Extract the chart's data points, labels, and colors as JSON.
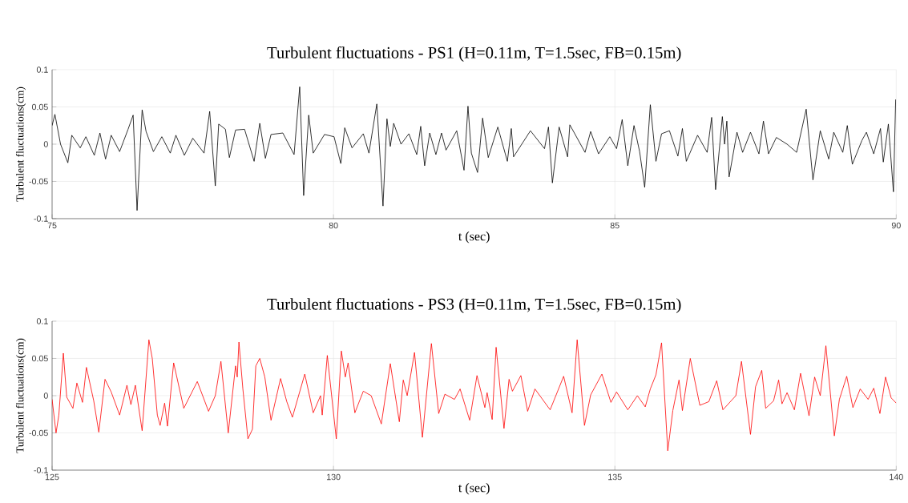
{
  "chart_data": [
    {
      "type": "line",
      "title": "Turbulent fluctuations - PS1 (H=0.11m, T=1.5sec, FB=0.15m)",
      "xlabel": "t (sec)",
      "ylabel": "Turbulent fluctuations(cm)",
      "xlim": [
        75,
        90
      ],
      "ylim": [
        -0.1,
        0.1
      ],
      "xticks": [
        75,
        80,
        85,
        90
      ],
      "yticks": [
        -0.1,
        -0.05,
        0,
        0.05,
        0.1
      ],
      "grid": true,
      "line_style": "solid",
      "marker": "none",
      "x": [
        75.0,
        75.05,
        75.15,
        75.28,
        75.35,
        75.5,
        75.6,
        75.75,
        75.85,
        75.95,
        76.05,
        76.2,
        76.35,
        76.44,
        76.51,
        76.6,
        76.67,
        76.8,
        76.95,
        77.1,
        77.2,
        77.35,
        77.5,
        77.7,
        77.8,
        77.9,
        77.96,
        78.08,
        78.15,
        78.26,
        78.42,
        78.59,
        78.69,
        78.79,
        78.89,
        79.1,
        79.3,
        79.4,
        79.47,
        79.56,
        79.64,
        79.84,
        80.01,
        80.13,
        80.2,
        80.33,
        80.53,
        80.63,
        80.77,
        80.88,
        80.95,
        81.01,
        81.07,
        81.2,
        81.34,
        81.48,
        81.55,
        81.62,
        81.71,
        81.82,
        81.92,
        82.0,
        82.19,
        82.32,
        82.39,
        82.45,
        82.56,
        82.65,
        82.75,
        82.92,
        83.09,
        83.16,
        83.2,
        83.5,
        83.75,
        83.82,
        83.89,
        84.01,
        84.16,
        84.2,
        84.47,
        84.57,
        84.71,
        84.91,
        85.03,
        85.13,
        85.23,
        85.34,
        85.44,
        85.53,
        85.63,
        85.73,
        85.83,
        85.97,
        86.12,
        86.2,
        86.27,
        86.47,
        86.64,
        86.72,
        86.79,
        86.91,
        86.95,
        86.99,
        87.03,
        87.17,
        87.27,
        87.41,
        87.56,
        87.64,
        87.73,
        87.87,
        88.06,
        88.23,
        88.4,
        88.52,
        88.65,
        88.8,
        88.89,
        89.05,
        89.13,
        89.22,
        89.39,
        89.47,
        89.6,
        89.72,
        89.77,
        89.86,
        89.95,
        89.99
      ],
      "series": [
        {
          "color": "#000000",
          "values": [
            0.025,
            0.04,
            0.0,
            -0.025,
            0.012,
            -0.005,
            0.01,
            -0.015,
            0.015,
            -0.02,
            0.012,
            -0.01,
            0.02,
            0.039,
            -0.089,
            0.046,
            0.017,
            -0.01,
            0.01,
            -0.012,
            0.012,
            -0.015,
            0.008,
            -0.012,
            0.044,
            -0.056,
            0.027,
            0.02,
            -0.018,
            0.019,
            0.02,
            -0.023,
            0.028,
            -0.019,
            0.013,
            0.015,
            -0.014,
            0.077,
            -0.069,
            0.039,
            -0.012,
            0.013,
            0.01,
            -0.026,
            0.022,
            -0.005,
            0.014,
            -0.012,
            0.054,
            -0.083,
            0.034,
            -0.003,
            0.028,
            0.0,
            0.014,
            -0.014,
            0.024,
            -0.029,
            0.015,
            -0.014,
            0.015,
            -0.008,
            0.018,
            -0.035,
            0.051,
            -0.012,
            -0.038,
            0.035,
            -0.018,
            0.023,
            -0.023,
            0.021,
            -0.017,
            0.018,
            -0.006,
            0.023,
            -0.052,
            0.023,
            -0.017,
            0.026,
            -0.011,
            0.017,
            -0.013,
            0.01,
            -0.006,
            0.033,
            -0.029,
            0.025,
            -0.01,
            -0.058,
            0.053,
            -0.023,
            0.014,
            0.018,
            -0.016,
            0.021,
            -0.023,
            0.012,
            -0.011,
            0.036,
            -0.061,
            0.037,
            0.0,
            0.031,
            -0.044,
            0.016,
            -0.011,
            0.016,
            -0.013,
            0.031,
            -0.013,
            0.009,
            0.0,
            -0.011,
            0.047,
            -0.048,
            0.018,
            -0.02,
            0.016,
            -0.011,
            0.025,
            -0.027,
            0.005,
            0.016,
            -0.013,
            0.021,
            -0.024,
            0.027,
            -0.064,
            0.06
          ]
        }
      ]
    },
    {
      "type": "line",
      "title": "Turbulent fluctuations - PS3 (H=0.11m, T=1.5sec, FB=0.15m)",
      "xlabel": "t (sec)",
      "ylabel": "Turbulent fluctuations(cm)",
      "xlim": [
        125,
        140
      ],
      "ylim": [
        -0.1,
        0.1
      ],
      "xticks": [
        125,
        130,
        135,
        140
      ],
      "yticks": [
        -0.1,
        -0.05,
        0,
        0.05,
        0.1
      ],
      "grid": true,
      "line_style": "solid",
      "marker": "none",
      "x": [
        125.0,
        125.07,
        125.12,
        125.2,
        125.26,
        125.37,
        125.44,
        125.54,
        125.61,
        125.74,
        125.83,
        125.94,
        126.05,
        126.2,
        126.33,
        126.4,
        126.48,
        126.6,
        126.72,
        126.78,
        126.87,
        126.92,
        127.0,
        127.05,
        127.16,
        127.34,
        127.58,
        127.78,
        127.9,
        128.0,
        128.13,
        128.26,
        128.29,
        128.32,
        128.39,
        128.48,
        128.56,
        128.62,
        128.69,
        128.78,
        128.89,
        129.06,
        129.17,
        129.27,
        129.49,
        129.64,
        129.77,
        129.8,
        129.89,
        130.05,
        130.14,
        130.21,
        130.26,
        130.38,
        130.53,
        130.67,
        130.85,
        131.01,
        131.17,
        131.24,
        131.31,
        131.44,
        131.58,
        131.74,
        131.87,
        131.98,
        132.15,
        132.25,
        132.42,
        132.55,
        132.69,
        132.73,
        132.82,
        132.89,
        133.03,
        133.12,
        133.18,
        133.33,
        133.45,
        133.58,
        133.85,
        134.09,
        134.24,
        134.33,
        134.46,
        134.57,
        134.77,
        134.93,
        135.03,
        135.23,
        135.4,
        135.54,
        135.63,
        135.73,
        135.83,
        135.94,
        136.03,
        136.14,
        136.2,
        136.34,
        136.51,
        136.67,
        136.81,
        136.92,
        137.15,
        137.25,
        137.41,
        137.5,
        137.61,
        137.68,
        137.82,
        137.91,
        137.97,
        138.06,
        138.19,
        138.3,
        138.45,
        138.55,
        138.65,
        138.75,
        138.9,
        138.99,
        139.12,
        139.23,
        139.36,
        139.5,
        139.6,
        139.71,
        139.81,
        139.91,
        140.0
      ],
      "series": [
        {
          "color": "#ff0000",
          "values": [
            -0.005,
            -0.05,
            -0.026,
            0.057,
            -0.002,
            -0.017,
            0.017,
            -0.009,
            0.038,
            -0.007,
            -0.049,
            0.022,
            0.005,
            -0.026,
            0.014,
            -0.012,
            0.014,
            -0.047,
            0.075,
            0.05,
            -0.026,
            -0.04,
            -0.01,
            -0.041,
            0.044,
            -0.017,
            0.019,
            -0.021,
            0.0,
            0.046,
            -0.05,
            0.04,
            0.025,
            0.072,
            0.009,
            -0.058,
            -0.045,
            0.04,
            0.05,
            0.025,
            -0.033,
            0.023,
            -0.008,
            -0.029,
            0.029,
            -0.023,
            0.0,
            -0.026,
            0.054,
            -0.058,
            0.06,
            0.025,
            0.044,
            -0.023,
            0.006,
            0.0,
            -0.038,
            0.043,
            -0.035,
            0.021,
            0.0,
            0.058,
            -0.056,
            0.07,
            -0.024,
            0.002,
            -0.005,
            0.009,
            -0.033,
            0.027,
            -0.016,
            0.004,
            -0.032,
            0.065,
            -0.044,
            0.022,
            0.006,
            0.027,
            -0.021,
            0.009,
            -0.019,
            0.026,
            -0.023,
            0.075,
            -0.04,
            0.001,
            0.029,
            -0.009,
            0.005,
            -0.019,
            0.0,
            -0.015,
            0.009,
            0.028,
            0.071,
            -0.074,
            -0.02,
            0.021,
            -0.02,
            0.05,
            -0.013,
            -0.008,
            0.02,
            -0.019,
            0.0,
            0.046,
            -0.052,
            0.012,
            0.034,
            -0.017,
            -0.007,
            0.021,
            -0.011,
            0.004,
            -0.019,
            0.03,
            -0.027,
            0.025,
            0.0,
            0.067,
            -0.054,
            -0.005,
            0.026,
            -0.016,
            0.009,
            -0.005,
            0.01,
            -0.024,
            0.025,
            -0.003,
            -0.01
          ]
        }
      ]
    }
  ]
}
